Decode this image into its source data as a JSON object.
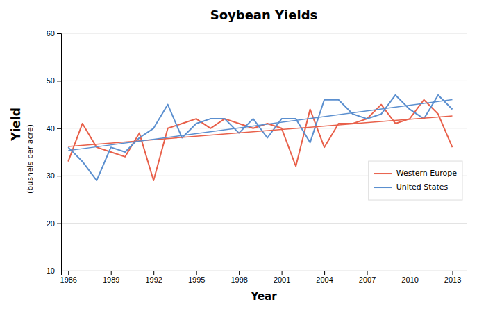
{
  "chart_data": {
    "type": "line",
    "title": "Soybean Yields",
    "xlabel": "Year",
    "ylabel": [
      "Yield",
      "(bushels per acre)"
    ],
    "x": [
      1986,
      1987,
      1988,
      1989,
      1990,
      1991,
      1992,
      1993,
      1994,
      1995,
      1996,
      1997,
      1998,
      1999,
      2000,
      2001,
      2002,
      2003,
      2004,
      2005,
      2006,
      2007,
      2008,
      2009,
      2010,
      2011,
      2012,
      2013
    ],
    "series": [
      {
        "name": "Western Europe",
        "color": "#e8604a",
        "type": "line",
        "values": [
          33,
          41,
          36,
          35,
          34,
          39,
          29,
          40,
          41,
          42,
          40,
          42,
          41,
          40,
          41,
          40,
          32,
          44,
          36,
          41,
          41,
          42,
          45,
          41,
          42,
          46,
          43,
          36
        ]
      },
      {
        "name": "United States",
        "color": "#5b8fcf",
        "type": "line",
        "values": [
          36,
          33,
          29,
          36,
          35,
          38,
          40,
          45,
          38,
          41,
          42,
          42,
          39,
          42,
          38,
          42,
          42,
          37,
          46,
          46,
          43,
          42,
          43,
          47,
          44,
          42,
          47,
          44
        ]
      },
      {
        "color": "#e8604a",
        "type": "line",
        "x": [
          1986,
          2013
        ],
        "values": [
          36.16749,
          42.61823
        ]
      },
      {
        "color": "#5b8fcf",
        "type": "line",
        "x": [
          1986,
          2013
        ],
        "values": [
          35.31034,
          46.0468
        ]
      }
    ],
    "xlim": [
      1985.5,
      2014
    ],
    "xticks": [
      1986,
      1989,
      1992,
      1995,
      1998,
      2001,
      2004,
      2007,
      2010,
      2013
    ],
    "ylim": [
      10,
      60
    ],
    "yticks": [
      10,
      20,
      30,
      40,
      50,
      60
    ],
    "grid": true,
    "legend": "right"
  }
}
